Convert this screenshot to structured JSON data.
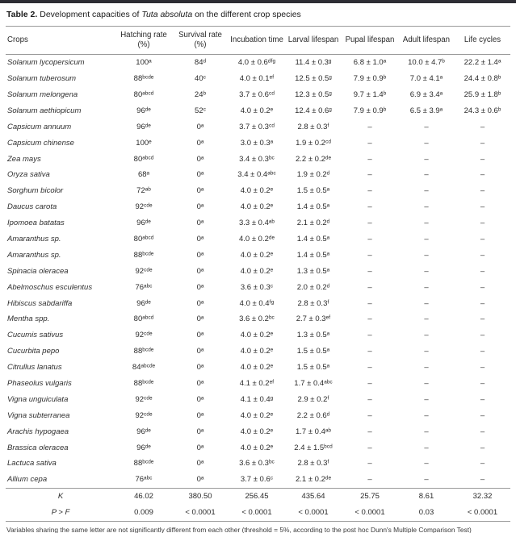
{
  "caption": {
    "label": "Table 2.",
    "text_before": " Development capacities of ",
    "species": "Tuta absoluta",
    "text_after": " on the different crop species"
  },
  "table": {
    "headers": [
      "Crops",
      "Hatching rate (%)",
      "Survival rate (%)",
      "Incubation time",
      "Larval lifespan",
      "Pupal lifespan",
      "Adult lifespan",
      "Life cycles"
    ],
    "rows": [
      {
        "crop": "Solanum lycopersicum",
        "values": [
          "100ᵃ",
          "84ᵈ",
          "4.0 ± 0.6ᵈᶠᵍ",
          "11.4 ± 0.3ᵍ",
          "6.8 ± 1.0ᵃ",
          "10.0 ± 4.7ᵇ",
          "22.2 ± 1.4ᵃ"
        ]
      },
      {
        "crop": "Solanum tuberosum",
        "values": [
          "88ᵇᶜᵈᵉ",
          "40ᶜ",
          "4.0 ± 0.1ᵉᶠ",
          "12.5 ± 0.5ᵍ",
          "7.9 ± 0.9ᵇ",
          "7.0 ± 4.1ᵃ",
          "24.4 ± 0.8ᵇ"
        ]
      },
      {
        "crop": "Solanum melongena",
        "values": [
          "80ᵃᵇᶜᵈ",
          "24ᵇ",
          "3.7 ± 0.6ᶜᵈ",
          "12.3 ± 0.5ᵍ",
          "9.7 ± 1.4ᵇ",
          "6.9 ± 3.4ᵃ",
          "25.9 ± 1.8ᵇ"
        ]
      },
      {
        "crop": "Solanum aethiopicum",
        "values": [
          "96ᵈᵉ",
          "52ᶜ",
          "4.0 ± 0.2ᵉ",
          "12.4 ± 0.6ᵍ",
          "7.9 ± 0.9ᵇ",
          "6.5 ± 3.9ᵃ",
          "24.3 ± 0.6ᵇ"
        ]
      },
      {
        "crop": "Capsicum annuum",
        "values": [
          "96ᵈᵉ",
          "0ᵃ",
          "3.7 ± 0.3ᶜᵈ",
          "2.8 ± 0.3ᶠ",
          "–",
          "–",
          "–"
        ]
      },
      {
        "crop": "Capsicum chinense",
        "values": [
          "100ᵉ",
          "0ᵃ",
          "3.0 ± 0.3ᵃ",
          "1.9 ± 0.2ᶜᵈ",
          "–",
          "–",
          "–"
        ]
      },
      {
        "crop": "Zea mays",
        "values": [
          "80ᵃᵇᶜᵈ",
          "0ᵃ",
          "3.4 ± 0.3ᵇᶜ",
          "2.2 ± 0.2ᵈᵉ",
          "–",
          "–",
          "–"
        ]
      },
      {
        "crop": "Oryza sativa",
        "values": [
          "68ᵃ",
          "0ᵃ",
          "3.4 ± 0.4ᵃᵇᶜ",
          "1.9 ± 0.2ᵈ",
          "–",
          "–",
          "–"
        ]
      },
      {
        "crop": "Sorghum bicolor",
        "values": [
          "72ᵃᵇ",
          "0ᵃ",
          "4.0 ± 0.2ᵉ",
          "1.5 ± 0.5ᵃ",
          "–",
          "–",
          "–"
        ]
      },
      {
        "crop": "Daucus carota",
        "values": [
          "92ᶜᵈᵉ",
          "0ᵃ",
          "4.0 ± 0.2ᵉ",
          "1.4 ± 0.5ᵃ",
          "–",
          "–",
          "–"
        ]
      },
      {
        "crop": "Ipomoea batatas",
        "values": [
          "96ᵈᵉ",
          "0ᵃ",
          "3.3 ± 0.4ᵃᵇ",
          "2.1 ± 0.2ᵈ",
          "–",
          "–",
          "–"
        ]
      },
      {
        "crop": "Amaranthus sp.",
        "values": [
          "80ᵃᵇᶜᵈ",
          "0ᵃ",
          "4.0 ± 0.2ᵈᵉ",
          "1.4 ± 0.5ᵃ",
          "–",
          "–",
          "–"
        ]
      },
      {
        "crop": "Amaranthus sp.",
        "values": [
          "88ᵇᶜᵈᵉ",
          "0ᵃ",
          "4.0 ± 0.2ᵉ",
          "1.4 ± 0.5ᵃ",
          "–",
          "–",
          "–"
        ]
      },
      {
        "crop": "Spinacia oleracea",
        "values": [
          "92ᶜᵈᵉ",
          "0ᵃ",
          "4.0 ± 0.2ᵉ",
          "1.3 ± 0.5ᵃ",
          "–",
          "–",
          "–"
        ]
      },
      {
        "crop": "Abelmoschus esculentus",
        "values": [
          "76ᵃᵇᶜ",
          "0ᵃ",
          "3.6 ± 0.3ᶜ",
          "2.0 ± 0.2ᵈ",
          "–",
          "–",
          "–"
        ]
      },
      {
        "crop": "Hibiscus sabdariffa",
        "values": [
          "96ᵈᵉ",
          "0ᵃ",
          "4.0 ± 0.4ᶠᵍ",
          "2.8 ± 0.3ᶠ",
          "–",
          "–",
          "–"
        ]
      },
      {
        "crop": "Mentha spp.",
        "values": [
          "80ᵃᵇᶜᵈ",
          "0ᵃ",
          "3.6 ± 0.2ᵇᶜ",
          "2.7 ± 0.3ᵉᶠ",
          "–",
          "–",
          "–"
        ]
      },
      {
        "crop": "Cucumis sativus",
        "values": [
          "92ᶜᵈᵉ",
          "0ᵃ",
          "4.0 ± 0.2ᵉ",
          "1.3 ± 0.5ᵃ",
          "–",
          "–",
          "–"
        ]
      },
      {
        "crop": "Cucurbita pepo",
        "values": [
          "88ᵇᶜᵈᵉ",
          "0ᵃ",
          "4.0 ± 0.2ᵉ",
          "1.5 ± 0.5ᵃ",
          "–",
          "–",
          "–"
        ]
      },
      {
        "crop": "Citrullus lanatus",
        "values": [
          "84ᵃᵇᶜᵈᵉ",
          "0ᵃ",
          "4.0 ± 0.2ᵉ",
          "1.5 ± 0.5ᵃ",
          "–",
          "–",
          "–"
        ]
      },
      {
        "crop": "Phaseolus vulgaris",
        "values": [
          "88ᵇᶜᵈᵉ",
          "0ᵃ",
          "4.1 ± 0.2ᵉᶠ",
          "1.7 ± 0.4ᵃᵇᶜ",
          "–",
          "–",
          "–"
        ]
      },
      {
        "crop": "Vigna unguiculata",
        "values": [
          "92ᶜᵈᵉ",
          "0ᵃ",
          "4.1 ± 0.4ᵍ",
          "2.9 ± 0.2ᶠ",
          "–",
          "–",
          "–"
        ]
      },
      {
        "crop": "Vigna subterranea",
        "values": [
          "92ᶜᵈᵉ",
          "0ᵃ",
          "4.0 ± 0.2ᵉ",
          "2.2 ± 0.6ᵈ",
          "–",
          "–",
          "–"
        ]
      },
      {
        "crop": "Arachis hypogaea",
        "values": [
          "96ᵈᵉ",
          "0ᵃ",
          "4.0 ± 0.2ᵉ",
          "1.7 ± 0.4ᵃᵇ",
          "–",
          "–",
          "–"
        ]
      },
      {
        "crop": "Brassica oleracea",
        "values": [
          "96ᵈᵉ",
          "0ᵃ",
          "4.0 ± 0.2ᵉ",
          "2.4 ± 1.5ᵇᶜᵈ",
          "–",
          "–",
          "–"
        ]
      },
      {
        "crop": "Lactuca sativa",
        "values": [
          "88ᵇᶜᵈᵉ",
          "0ᵃ",
          "3.6 ± 0.3ᵇᶜ",
          "2.8 ± 0.3ᶠ",
          "–",
          "–",
          "–"
        ]
      },
      {
        "crop": "Allium cepa",
        "values": [
          "76ᵃᵇᶜ",
          "0ᵃ",
          "3.7 ± 0.6ᶜ",
          "2.1 ± 0.2ᵈᵉ",
          "–",
          "–",
          "–"
        ]
      }
    ],
    "stats": [
      {
        "label": "K",
        "values": [
          "46.02",
          "380.50",
          "256.45",
          "435.64",
          "25.75",
          "8.61",
          "32.32"
        ]
      },
      {
        "label": "P > F",
        "values": [
          "0.009",
          "< 0.0001",
          "< 0.0001",
          "< 0.0001",
          "< 0.0001",
          "0.03",
          "< 0.0001"
        ]
      }
    ]
  },
  "footnote": "Variables sharing the same letter are not significantly different from each other (threshold = 5%, according to the post hoc Dunn's Multiple Comparison Test)"
}
